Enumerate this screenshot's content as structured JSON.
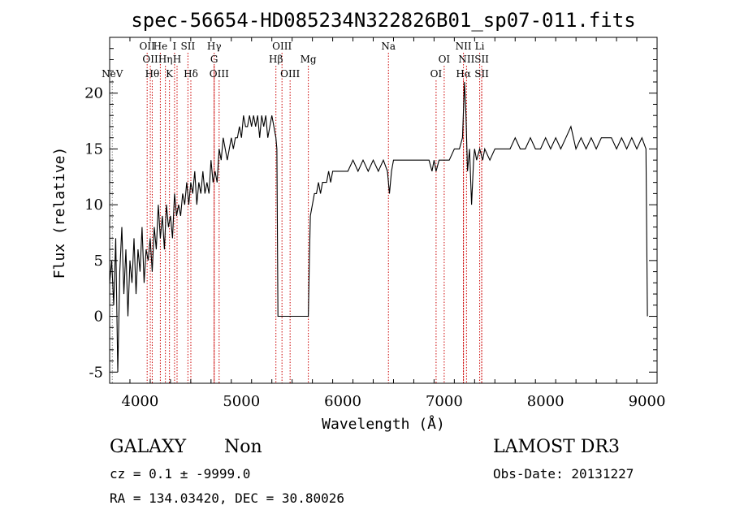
{
  "chart_data": {
    "type": "line",
    "title": "spec-56654-HD085234N322826B01_sp07-011.fits",
    "xlabel": "Wavelength (Å)",
    "ylabel": "Flux (relative)",
    "xlim": [
      3700,
      9100
    ],
    "ylim": [
      -6,
      25
    ],
    "xticks": [
      4000,
      5000,
      6000,
      7000,
      8000,
      9000
    ],
    "yticks": [
      -5,
      0,
      5,
      10,
      15,
      20
    ],
    "grid": false,
    "series": [
      {
        "x": [
          3700,
          3720,
          3740,
          3760,
          3780,
          3800,
          3820,
          3840,
          3860,
          3880,
          3900,
          3920,
          3940,
          3960,
          3980,
          4000,
          4020,
          4040,
          4060,
          4080,
          4100,
          4120,
          4140,
          4160,
          4180,
          4200,
          4220,
          4240,
          4260,
          4280,
          4300,
          4320,
          4340,
          4360,
          4380,
          4400,
          4420,
          4440,
          4460,
          4480,
          4500,
          4520,
          4540,
          4560,
          4580,
          4600,
          4620,
          4640,
          4660,
          4680,
          4700,
          4720,
          4740,
          4760,
          4780,
          4800,
          4820,
          4840,
          4860,
          4880,
          4900,
          4920,
          4940,
          4960,
          4980,
          5000,
          5020,
          5040,
          5060,
          5080,
          5100,
          5120,
          5140,
          5160,
          5180,
          5200,
          5220,
          5240,
          5260,
          5280,
          5300,
          5320,
          5340,
          5350,
          5360,
          5660,
          5670,
          5680,
          5700,
          5720,
          5740,
          5760,
          5780,
          5800,
          5820,
          5840,
          5860,
          5880,
          5900,
          5950,
          6000,
          6050,
          6100,
          6150,
          6200,
          6250,
          6300,
          6350,
          6400,
          6440,
          6460,
          6480,
          6500,
          6550,
          6600,
          6650,
          6700,
          6750,
          6800,
          6850,
          6880,
          6900,
          6920,
          6950,
          7000,
          7050,
          7100,
          7150,
          7180,
          7200,
          7215,
          7230,
          7250,
          7270,
          7290,
          7300,
          7320,
          7350,
          7380,
          7400,
          7450,
          7500,
          7550,
          7600,
          7650,
          7700,
          7750,
          7800,
          7850,
          7900,
          7950,
          8000,
          8050,
          8100,
          8150,
          8200,
          8250,
          8300,
          8350,
          8400,
          8450,
          8500,
          8550,
          8600,
          8650,
          8700,
          8750,
          8800,
          8850,
          8900,
          8950,
          8990,
          9000,
          9005
        ],
        "y": [
          3,
          5,
          1,
          7,
          -5,
          4,
          8,
          2,
          6,
          0,
          5,
          3,
          7,
          2,
          6,
          4,
          8,
          3,
          6,
          5,
          7,
          4,
          8,
          6,
          10,
          7,
          9,
          6,
          10,
          8,
          9,
          7,
          11,
          9,
          10,
          9,
          11,
          10,
          12,
          10,
          12,
          11,
          13,
          10,
          12,
          11,
          13,
          11,
          12,
          11,
          14,
          12,
          13,
          12,
          15,
          14,
          16,
          15,
          14,
          15,
          16,
          15,
          16,
          16,
          17,
          16,
          18,
          17,
          17,
          18,
          17,
          18,
          17,
          18,
          16,
          18,
          17,
          18,
          16,
          17,
          18,
          17,
          16,
          15,
          0,
          0,
          5,
          9,
          10,
          11,
          11,
          12,
          11,
          12,
          12,
          12,
          13,
          12,
          13,
          13,
          13,
          13,
          14,
          13,
          14,
          13,
          14,
          13,
          14,
          13,
          11,
          13,
          14,
          14,
          14,
          14,
          14,
          14,
          14,
          14,
          13,
          14,
          13,
          14,
          14,
          14,
          15,
          15,
          16,
          21,
          18,
          13,
          15,
          10,
          14,
          15,
          14,
          15,
          14,
          15,
          14,
          15,
          15,
          15,
          15,
          16,
          15,
          15,
          16,
          15,
          15,
          16,
          15,
          16,
          15,
          16,
          17,
          15,
          16,
          15,
          16,
          15,
          16,
          16,
          16,
          15,
          16,
          15,
          16,
          15,
          16,
          15,
          5,
          0
        ]
      }
    ],
    "lines": [
      {
        "x": 3726,
        "label": "NeV",
        "row": 2,
        "style": "grey-dotted"
      },
      {
        "x": 4070,
        "label": "OII",
        "row": 0,
        "style": "red-dotted"
      },
      {
        "x": 4101,
        "label": "OII",
        "row": 1,
        "style": "red-dotted"
      },
      {
        "x": 4120,
        "label": "Hθ",
        "row": 2,
        "style": "red-dotted"
      },
      {
        "x": 4200,
        "label": "He",
        "row": 0,
        "style": "red-dotted"
      },
      {
        "x": 4250,
        "label": "Hη",
        "row": 1,
        "style": "red-dotted"
      },
      {
        "x": 4290,
        "label": "K",
        "row": 2,
        "style": "red-dotted"
      },
      {
        "x": 4340,
        "label": "I",
        "row": 0,
        "style": "red-dotted"
      },
      {
        "x": 4365,
        "label": "H",
        "row": 1,
        "style": "red-dotted"
      },
      {
        "x": 4472,
        "label": "SII",
        "row": 0,
        "style": "red-dotted"
      },
      {
        "x": 4501,
        "label": "Hδ",
        "row": 2,
        "style": "red-dotted"
      },
      {
        "x": 4731,
        "label": "Hγ",
        "row": 0,
        "style": "red-dotted"
      },
      {
        "x": 4731,
        "label": "G",
        "row": 1,
        "style": "red-dotted"
      },
      {
        "x": 4780,
        "label": "OIII",
        "row": 2,
        "style": "red-dotted"
      },
      {
        "x": 5340,
        "label": "Hβ",
        "row": 1,
        "style": "red-dotted"
      },
      {
        "x": 5400,
        "label": "OIII",
        "row": 0,
        "style": "red-dotted"
      },
      {
        "x": 5480,
        "label": "OIII",
        "row": 2,
        "style": "red-dotted"
      },
      {
        "x": 5660,
        "label": "Mg",
        "row": 1,
        "style": "red-dotted"
      },
      {
        "x": 6450,
        "label": "Na",
        "row": 0,
        "style": "red-dotted"
      },
      {
        "x": 6920,
        "label": "OI",
        "row": 2,
        "style": "red-dotted"
      },
      {
        "x": 7000,
        "label": "OI",
        "row": 1,
        "style": "red-dotted"
      },
      {
        "x": 7190,
        "label": "NII",
        "row": 0,
        "style": "red-dotted"
      },
      {
        "x": 7190,
        "label": "Hα",
        "row": 2,
        "style": "red-dotted"
      },
      {
        "x": 7220,
        "label": "NII",
        "row": 1,
        "style": "red-dotted"
      },
      {
        "x": 7350,
        "label": "Li",
        "row": 0,
        "style": "red-dotted"
      },
      {
        "x": 7370,
        "label": "SII",
        "row": 1,
        "style": "red-dotted"
      },
      {
        "x": 7370,
        "label": "SII",
        "row": 2,
        "style": "red-dotted"
      }
    ]
  },
  "footer": {
    "class_label": "GALAXY",
    "subclass_label": "Non",
    "cz_text": "cz = 0.1 ± -9999.0",
    "coords_text": "RA = 134.03420, DEC =  30.80026",
    "survey_label": "LAMOST DR3",
    "obs_date_text": "Obs-Date: 20131227"
  }
}
